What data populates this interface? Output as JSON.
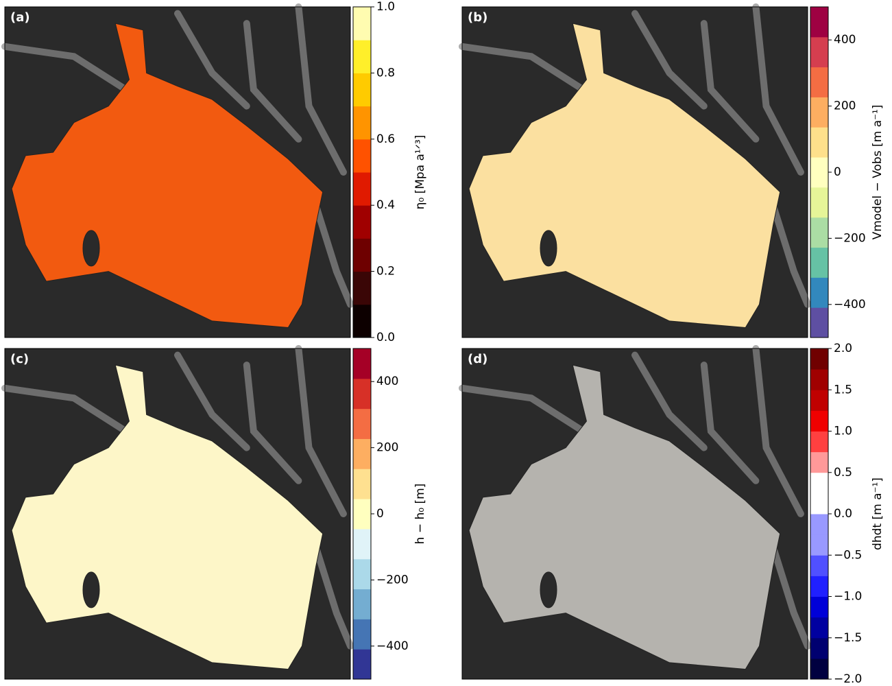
{
  "chart_data": [
    {
      "type": "map",
      "panel": "(a)",
      "colorbar_label": "η₀ [Mpa a¹ᐟ³]",
      "clim": [
        0,
        1
      ],
      "cticks": [
        {
          "value": 0,
          "label": "0.0"
        },
        0.2,
        0.4,
        0.6,
        0.8,
        {
          "value": 1,
          "label": "1.0"
        }
      ],
      "colors": [
        "#0d0000",
        "#3a0606",
        "#6e0000",
        "#a00000",
        "#e01a00",
        "#ff5200",
        "#ff9400",
        "#ffcb00",
        "#ffef2a",
        "#fffcb0"
      ]
    },
    {
      "type": "map",
      "panel": "(b)",
      "colorbar_label": "Vmodel − Vobs [m a⁻¹]",
      "clim": [
        -500,
        500
      ],
      "cticks": [
        {
          "value": -400,
          "label": "−400"
        },
        {
          "value": -200,
          "label": "−200"
        },
        0,
        200,
        400
      ],
      "colors": [
        "#5e4fa2",
        "#3288bd",
        "#66c2a5",
        "#abdda4",
        "#e6f598",
        "#ffffbf",
        "#fee08b",
        "#fdae61",
        "#f46d43",
        "#d53e4f",
        "#9e0142"
      ]
    },
    {
      "type": "map",
      "panel": "(c)",
      "colorbar_label": "h − h₀ [m]",
      "clim": [
        -500,
        500
      ],
      "cticks": [
        {
          "value": -400,
          "label": "−400"
        },
        {
          "value": -200,
          "label": "−200"
        },
        0,
        200,
        400
      ],
      "colors": [
        "#313695",
        "#4575b4",
        "#74add1",
        "#abd9e9",
        "#e0f3f8",
        "#ffffbf",
        "#fee090",
        "#fdae61",
        "#f46d43",
        "#d73027",
        "#a50026"
      ]
    },
    {
      "type": "map",
      "panel": "(d)",
      "colorbar_label": "dhdt [m a⁻¹]",
      "clim": [
        -2,
        2
      ],
      "cticks": [
        {
          "value": -2,
          "label": "−2.0"
        },
        {
          "value": -1.5,
          "label": "−1.5"
        },
        {
          "value": -1,
          "label": "−1.0"
        },
        {
          "value": -0.5,
          "label": "−0.5"
        },
        {
          "value": 0,
          "label": "0.0"
        },
        0.5,
        {
          "value": 1,
          "label": "1.0"
        },
        1.5,
        {
          "value": 2,
          "label": "2.0"
        }
      ],
      "colors": [
        "#000040",
        "#000070",
        "#0000a0",
        "#0000d8",
        "#2020ff",
        "#5050ff",
        "#9999ff",
        "#9999ff",
        "#ffffff",
        "#ffffff",
        "#ff9999",
        "#ff4040",
        "#f00000",
        "#c00000",
        "#a00000",
        "#700000"
      ]
    }
  ]
}
